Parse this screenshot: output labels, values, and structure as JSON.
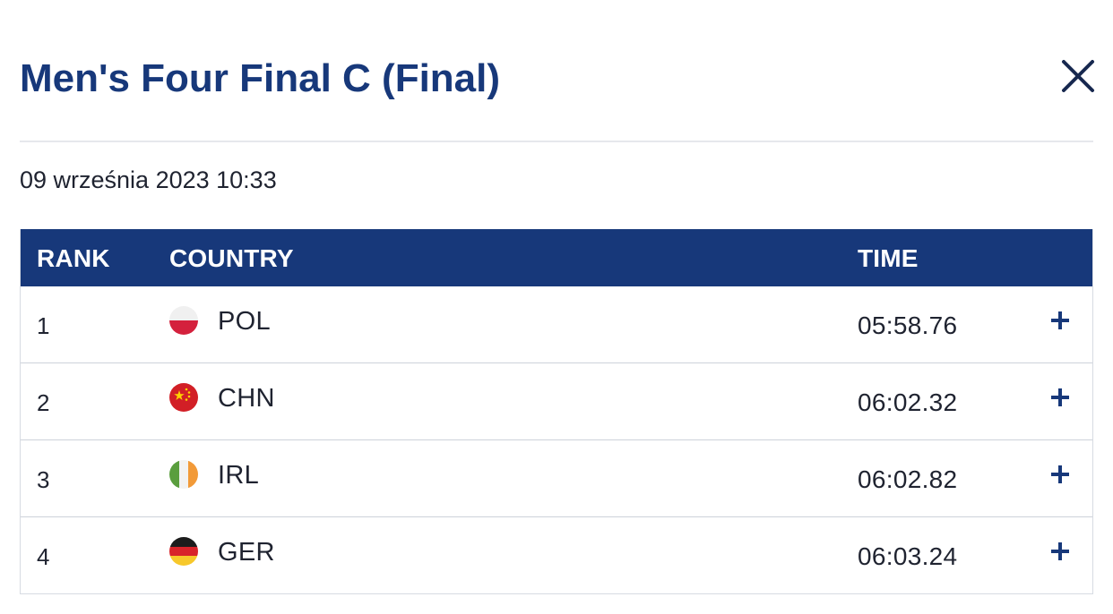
{
  "modal": {
    "title": "Men's Four Final C (Final)",
    "close_icon": "close-icon",
    "date": "09 września 2023 10:33"
  },
  "table": {
    "headers": {
      "rank": "RANK",
      "country": "COUNTRY",
      "time": "TIME"
    },
    "rows": [
      {
        "rank": "1",
        "country": "POL",
        "flag_icon": "poland-flag-icon",
        "time": "05:58.76",
        "expand_icon": "plus-icon"
      },
      {
        "rank": "2",
        "country": "CHN",
        "flag_icon": "china-flag-icon",
        "time": "06:02.32",
        "expand_icon": "plus-icon"
      },
      {
        "rank": "3",
        "country": "IRL",
        "flag_icon": "ireland-flag-icon",
        "time": "06:02.82",
        "expand_icon": "plus-icon"
      },
      {
        "rank": "4",
        "country": "GER",
        "flag_icon": "germany-flag-icon",
        "time": "06:03.24",
        "expand_icon": "plus-icon"
      }
    ]
  },
  "colors": {
    "brand_navy": "#17387a",
    "text": "#1f2330",
    "divider": "#e6e8ec",
    "row_border": "#cdd2da"
  }
}
